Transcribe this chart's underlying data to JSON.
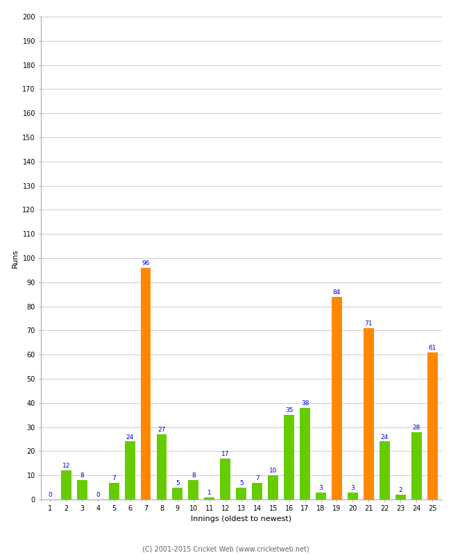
{
  "xlabel": "Innings (oldest to newest)",
  "ylabel": "Runs",
  "categories": [
    1,
    2,
    3,
    4,
    5,
    6,
    7,
    8,
    9,
    10,
    11,
    12,
    13,
    14,
    15,
    16,
    17,
    18,
    19,
    20,
    21,
    22,
    23,
    24,
    25
  ],
  "values": [
    0,
    12,
    8,
    0,
    7,
    24,
    96,
    27,
    5,
    8,
    1,
    17,
    5,
    7,
    10,
    35,
    38,
    3,
    84,
    3,
    71,
    24,
    2,
    28,
    61
  ],
  "colors": [
    "#66cc00",
    "#66cc00",
    "#66cc00",
    "#66cc00",
    "#66cc00",
    "#66cc00",
    "#ff8800",
    "#66cc00",
    "#66cc00",
    "#66cc00",
    "#66cc00",
    "#66cc00",
    "#66cc00",
    "#66cc00",
    "#66cc00",
    "#66cc00",
    "#66cc00",
    "#66cc00",
    "#ff8800",
    "#66cc00",
    "#ff8800",
    "#66cc00",
    "#66cc00",
    "#66cc00",
    "#ff8800"
  ],
  "ylim": [
    0,
    200
  ],
  "yticks": [
    0,
    10,
    20,
    30,
    40,
    50,
    60,
    70,
    80,
    90,
    100,
    110,
    120,
    130,
    140,
    150,
    160,
    170,
    180,
    190,
    200
  ],
  "label_color": "#0000cc",
  "label_fontsize": 6.5,
  "bar_width": 0.65,
  "background_color": "#ffffff",
  "grid_color": "#cccccc",
  "footer": "(C) 2001-2015 Cricket Web (www.cricketweb.net)"
}
